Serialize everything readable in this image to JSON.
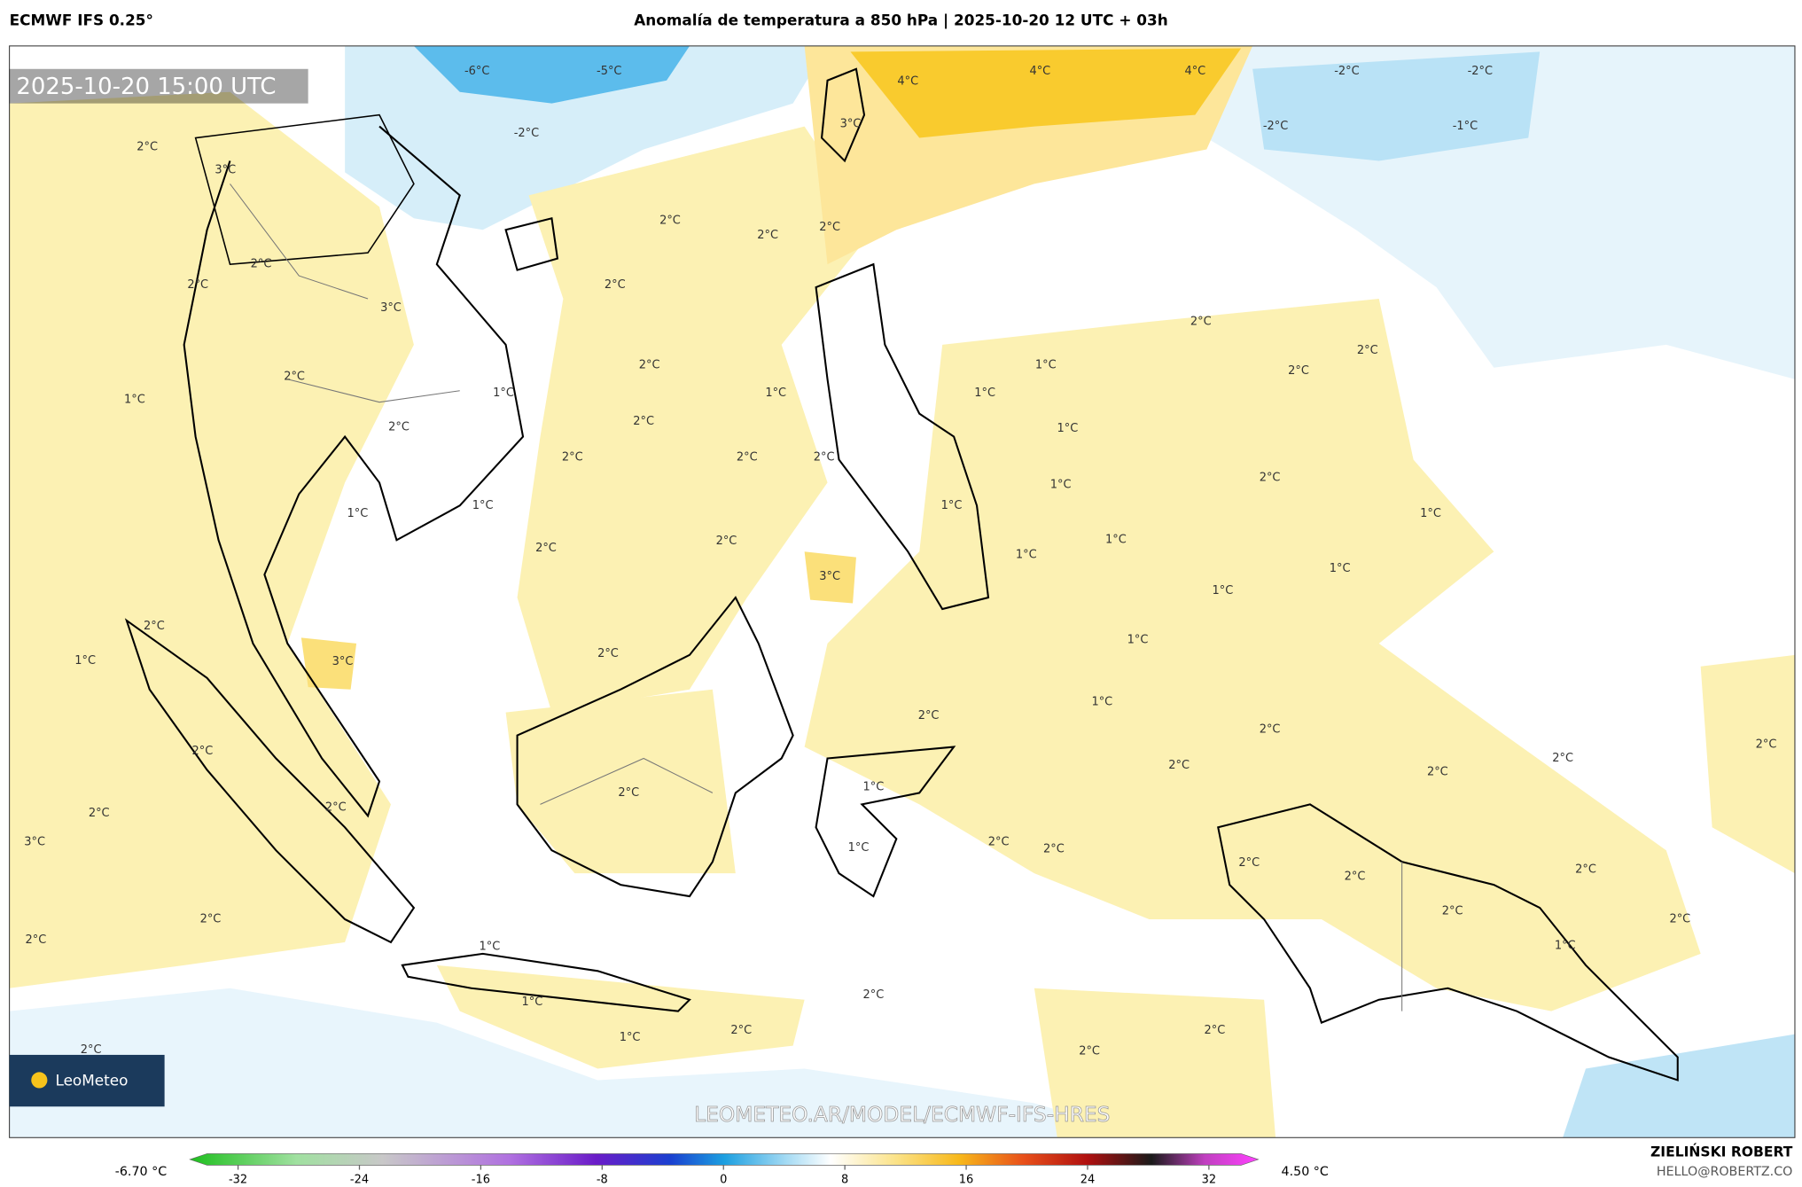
{
  "header": {
    "model": "ECMWF IFS 0.25°",
    "title": "Anomalía de temperatura a 850 hPa | 2025-10-20 12 UTC + 03h"
  },
  "map": {
    "valid_time": "2025-10-20 15:00 UTC",
    "watermark": "LEOMETEO.AR/MODEL/ECMWF-IFS-HRES",
    "logo": "LeoMeteo",
    "contour_labels": [
      "-6°C",
      "-5°C",
      "-2°C",
      "4°C",
      "4°C",
      "4°C",
      "-2°C",
      "-2°C",
      "-2°C",
      "-1°C",
      "3°C",
      "2°C",
      "3°C",
      "2°C",
      "2°C",
      "2°C",
      "2°C",
      "2°C",
      "2°C",
      "3°C",
      "2°C",
      "2°C",
      "2°C",
      "2°C",
      "1°C",
      "2°C",
      "1°C",
      "1°C",
      "1°C",
      "1°C",
      "2°C",
      "2°C",
      "1°C",
      "2°C",
      "2°C",
      "2°C",
      "2°C",
      "1°C",
      "1°C",
      "1°C",
      "1°C",
      "1°C",
      "1°C",
      "2°C",
      "2°C",
      "1°C",
      "1°C",
      "3°C",
      "1°C",
      "1°C",
      "2°C",
      "2°C",
      "1°C",
      "3°C",
      "1°C",
      "2°C",
      "2°C",
      "2°C",
      "2°C",
      "2°C",
      "2°C",
      "2°C",
      "1°C",
      "2°C",
      "2°C",
      "2°C",
      "3°C",
      "2°C",
      "1°C",
      "2°C",
      "2°C",
      "2°C",
      "2°C",
      "2°C",
      "2°C",
      "2°C",
      "2°C",
      "1°C",
      "1°C",
      "2°C",
      "1°C",
      "1°C",
      "2°C",
      "2°C",
      "2°C",
      "2°C"
    ]
  },
  "colorbar": {
    "min_label": "-6.70 °C",
    "max_label": "4.50 °C",
    "ticks": [
      -32,
      -24,
      -16,
      -8,
      0,
      8,
      16,
      24,
      32
    ]
  },
  "credits": {
    "author": "ZIELIŃSKI ROBERT",
    "email": "HELLO@ROBERTZ.CO"
  }
}
